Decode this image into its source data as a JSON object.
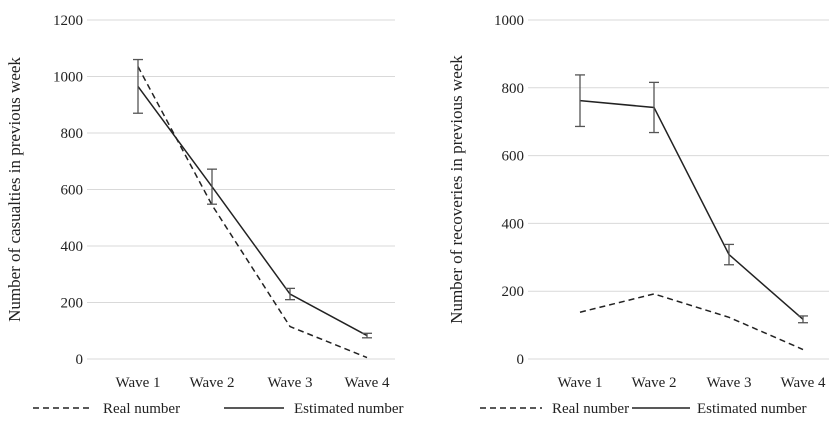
{
  "chart_data": [
    {
      "type": "line",
      "title": "",
      "xlabel": "",
      "ylabel": "Number of casualties in previous week",
      "categories": [
        "Wave 1",
        "Wave 2",
        "Wave 3",
        "Wave 4"
      ],
      "ylim": [
        0,
        1200
      ],
      "yticks": [
        0,
        200,
        400,
        600,
        800,
        1000,
        1200
      ],
      "grid": true,
      "legend_position": "bottom",
      "series": [
        {
          "name": "Real number",
          "style": "dashed",
          "values": [
            1035,
            545,
            115,
            5
          ]
        },
        {
          "name": "Estimated number",
          "style": "solid",
          "values": [
            965,
            610,
            230,
            83
          ],
          "error": [
            95,
            62,
            20,
            8
          ]
        }
      ]
    },
    {
      "type": "line",
      "title": "",
      "xlabel": "",
      "ylabel": "Number of recoveries in previous week",
      "categories": [
        "Wave 1",
        "Wave 2",
        "Wave 3",
        "Wave 4"
      ],
      "ylim": [
        0,
        1000
      ],
      "yticks": [
        0,
        200,
        400,
        600,
        800,
        1000
      ],
      "grid": true,
      "legend_position": "bottom",
      "series": [
        {
          "name": "Real number",
          "style": "dashed",
          "values": [
            138,
            192,
            123,
            28
          ]
        },
        {
          "name": "Estimated number",
          "style": "solid",
          "values": [
            762,
            742,
            308,
            117
          ],
          "error": [
            76,
            74,
            30,
            10
          ]
        }
      ]
    }
  ]
}
